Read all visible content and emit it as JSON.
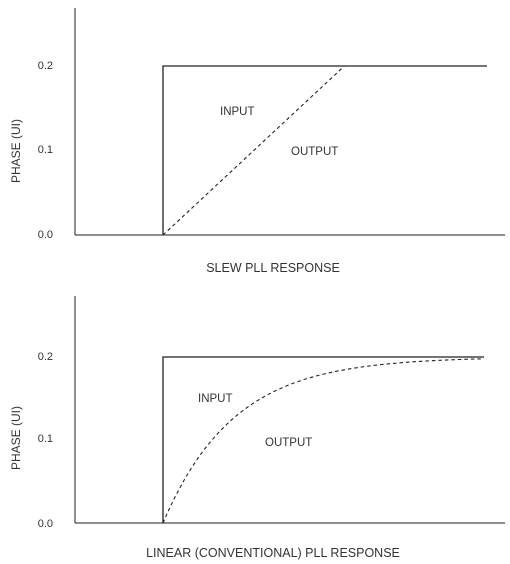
{
  "chart_data": [
    {
      "type": "line",
      "title": "SLEW PLL RESPONSE",
      "ylabel": "PHASE (UI)",
      "xlabel": "",
      "ylim": [
        0,
        0.25
      ],
      "yticks": [
        0.0,
        0.1,
        0.2
      ],
      "ytick_labels": [
        "0.0",
        "0.1",
        "0.2"
      ],
      "grid": false,
      "series": [
        {
          "name": "INPUT",
          "style": "solid",
          "x": [
            0,
            0,
            0,
            1
          ],
          "y": [
            0,
            0,
            0.2,
            0.2
          ]
        },
        {
          "name": "OUTPUT",
          "style": "dashed",
          "shape": "linear-ramp",
          "x": [
            0,
            0.56,
            1
          ],
          "y": [
            0,
            0.2,
            0.2
          ]
        }
      ]
    },
    {
      "type": "line",
      "title": "LINEAR (CONVENTIONAL) PLL RESPONSE",
      "ylabel": "PHASE (UI)",
      "xlabel": "",
      "ylim": [
        0,
        0.25
      ],
      "yticks": [
        0.0,
        0.1,
        0.2
      ],
      "ytick_labels": [
        "0.0",
        "0.1",
        "0.2"
      ],
      "grid": false,
      "series": [
        {
          "name": "INPUT",
          "style": "solid",
          "x": [
            0,
            0,
            0,
            1
          ],
          "y": [
            0,
            0,
            0.2,
            0.2
          ]
        },
        {
          "name": "OUTPUT",
          "style": "dashed",
          "shape": "exponential",
          "tau": 0.22,
          "x": [
            0,
            1
          ],
          "y": [
            0,
            0.2
          ]
        }
      ]
    }
  ],
  "colors": {
    "line": "#222222",
    "text": "#333333",
    "background": "#ffffff"
  }
}
